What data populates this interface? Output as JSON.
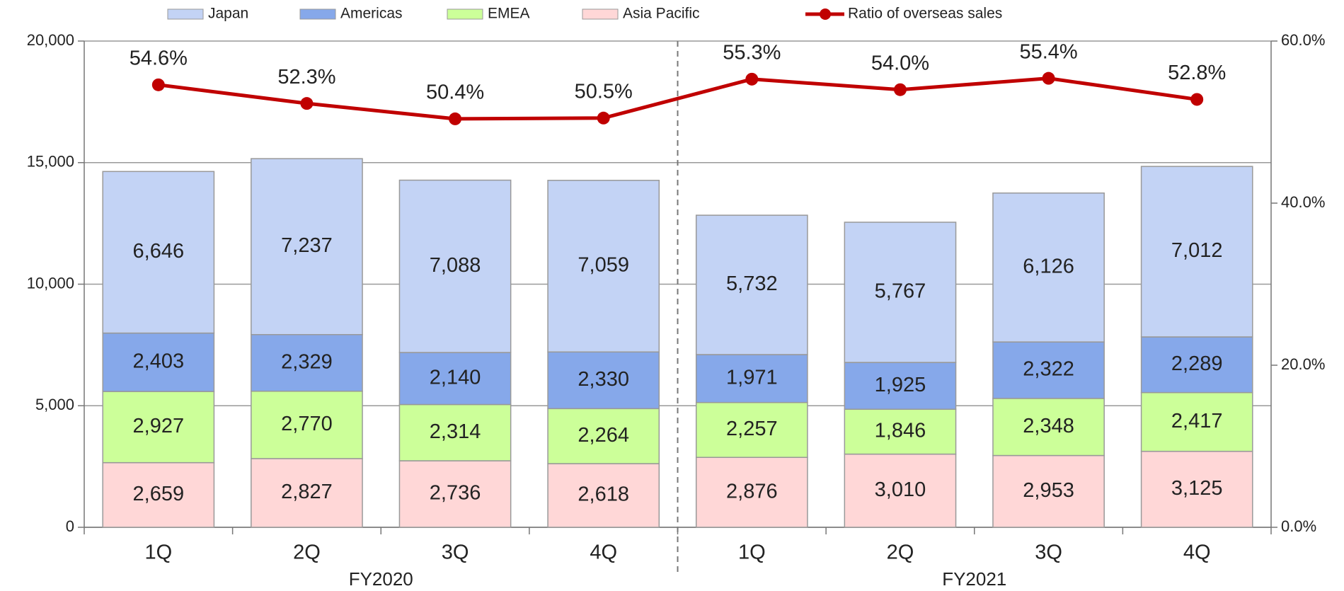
{
  "chart_data": {
    "type": "stacked_bar_line",
    "categories": [
      "1Q",
      "2Q",
      "3Q",
      "4Q",
      "1Q",
      "2Q",
      "3Q",
      "4Q"
    ],
    "group_labels": [
      "FY2020",
      "FY2021"
    ],
    "series": [
      {
        "name": "Asia Pacific",
        "color": "#ffd7d7",
        "values": [
          2659,
          2827,
          2736,
          2618,
          2876,
          3010,
          2953,
          3125
        ],
        "value_labels": [
          "2,659",
          "2,827",
          "2,736",
          "2,618",
          "2,876",
          "3,010",
          "2,953",
          "3,125"
        ]
      },
      {
        "name": "EMEA",
        "color": "#ccff99",
        "values": [
          2927,
          2770,
          2314,
          2264,
          2257,
          1846,
          2348,
          2417
        ],
        "value_labels": [
          "2,927",
          "2,770",
          "2,314",
          "2,264",
          "2,257",
          "1,846",
          "2,348",
          "2,417"
        ]
      },
      {
        "name": "Americas",
        "color": "#86a8ea",
        "values": [
          2403,
          2329,
          2140,
          2330,
          1971,
          1925,
          2322,
          2289
        ],
        "value_labels": [
          "2,403",
          "2,329",
          "2,140",
          "2,330",
          "1,971",
          "1,925",
          "2,322",
          "2,289"
        ]
      },
      {
        "name": "Japan",
        "color": "#c3d3f5",
        "values": [
          6646,
          7237,
          7088,
          7059,
          5732,
          5767,
          6126,
          7012
        ],
        "value_labels": [
          "6,646",
          "7,237",
          "7,088",
          "7,059",
          "5,732",
          "5,767",
          "6,126",
          "7,012"
        ]
      },
      {
        "name": "Ratio of overseas sales",
        "color": "#c00000",
        "axis": "y2",
        "values": [
          54.6,
          52.3,
          50.4,
          50.5,
          55.3,
          54.0,
          55.4,
          52.8
        ],
        "value_labels": [
          "54.6%",
          "52.3%",
          "50.4%",
          "50.5%",
          "55.3%",
          "54.0%",
          "55.4%",
          "52.8%"
        ]
      }
    ],
    "ylim": [
      0,
      20000
    ],
    "yticks": [
      0,
      {
        "value": 5000,
        "label": "5,000"
      },
      {
        "value": 10000,
        "label": "10,000"
      },
      {
        "value": 15000,
        "label": "15,000"
      },
      {
        "value": 20000,
        "label": "20,000"
      }
    ],
    "y2lim": [
      0,
      60
    ],
    "y2ticks": [
      {
        "value": 0,
        "label": "0.0%"
      },
      {
        "value": 20,
        "label": "20.0%"
      },
      {
        "value": 40,
        "label": "40.0%"
      },
      {
        "value": 60,
        "label": "60.0%"
      }
    ],
    "grid": true
  }
}
